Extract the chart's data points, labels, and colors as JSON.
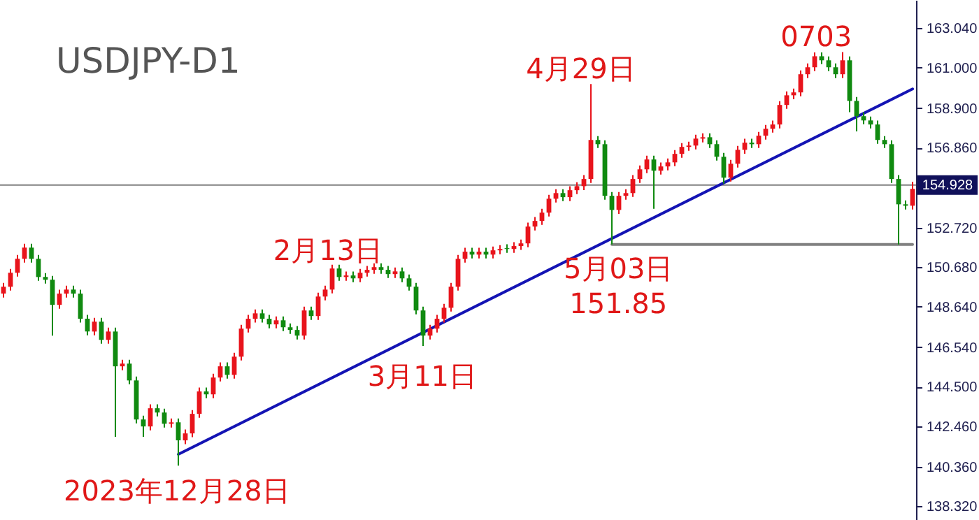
{
  "chart_data": {
    "type": "candlestick",
    "title": "USDJPY-D1",
    "categories": [
      null,
      null,
      null,
      null,
      null,
      null,
      null,
      null,
      null,
      null,
      null,
      null,
      null,
      null,
      null,
      null,
      null,
      null,
      null,
      null,
      null,
      null,
      null,
      null,
      null,
      null,
      null,
      null,
      null,
      null,
      null,
      null,
      null,
      null,
      null,
      null,
      null,
      null,
      null,
      null,
      null,
      null,
      null,
      null,
      null,
      null,
      null,
      null,
      null,
      null,
      null,
      null,
      null,
      null,
      null,
      null,
      null,
      null,
      null,
      null,
      null,
      null,
      null,
      null,
      null,
      null,
      null,
      null,
      null,
      null,
      null,
      null,
      null,
      null,
      null,
      null,
      null,
      null,
      null,
      null,
      null,
      null,
      null,
      null,
      null,
      null,
      null,
      null,
      null,
      null,
      null,
      null,
      null,
      null,
      null,
      null,
      null,
      null,
      null,
      null,
      null,
      null,
      null,
      null,
      null,
      null,
      null,
      null,
      null,
      null,
      null,
      null,
      null,
      null,
      null,
      null,
      null,
      null,
      null,
      null,
      null,
      null,
      null,
      null,
      null,
      null,
      null,
      null,
      null,
      null,
      null
    ],
    "ohlc": [
      [
        149.31,
        149.87,
        149.11,
        149.67
      ],
      [
        149.67,
        150.59,
        149.47,
        150.39
      ],
      [
        150.39,
        151.31,
        150.19,
        151.11
      ],
      [
        151.11,
        151.89,
        150.91,
        151.69
      ],
      [
        151.69,
        151.89,
        150.91,
        151.11
      ],
      [
        151.11,
        151.31,
        149.97,
        150.17
      ],
      [
        150.17,
        150.37,
        149.83,
        150.03
      ],
      [
        150.03,
        150.23,
        147.14,
        148.73
      ],
      [
        148.73,
        149.51,
        148.53,
        149.31
      ],
      [
        149.31,
        149.72,
        149.11,
        149.52
      ],
      [
        149.52,
        149.72,
        149.11,
        149.31
      ],
      [
        149.31,
        149.51,
        147.81,
        148.01
      ],
      [
        148.01,
        148.21,
        147.15,
        147.35
      ],
      [
        147.35,
        148.06,
        147.15,
        147.86
      ],
      [
        147.86,
        148.06,
        146.72,
        146.92
      ],
      [
        146.92,
        147.55,
        146.72,
        147.35
      ],
      [
        147.35,
        147.55,
        141.9,
        145.55
      ],
      [
        145.55,
        145.89,
        145.35,
        145.69
      ],
      [
        145.69,
        145.89,
        144.62,
        144.82
      ],
      [
        144.82,
        145.02,
        142.6,
        142.8
      ],
      [
        142.8,
        143.0,
        141.9,
        142.44
      ],
      [
        142.44,
        143.58,
        142.24,
        143.38
      ],
      [
        143.38,
        143.58,
        142.96,
        143.16
      ],
      [
        143.16,
        143.36,
        142.38,
        142.58
      ],
      [
        142.58,
        142.85,
        142.38,
        142.65
      ],
      [
        142.65,
        142.85,
        140.41,
        141.72
      ],
      [
        141.72,
        142.28,
        141.52,
        142.08
      ],
      [
        142.08,
        143.29,
        141.88,
        143.09
      ],
      [
        143.09,
        144.45,
        142.89,
        144.25
      ],
      [
        144.25,
        144.45,
        143.9,
        144.1
      ],
      [
        144.1,
        145.17,
        143.9,
        144.97
      ],
      [
        144.97,
        145.75,
        144.77,
        145.55
      ],
      [
        145.55,
        145.75,
        144.91,
        145.11
      ],
      [
        145.11,
        146.25,
        144.91,
        146.05
      ],
      [
        146.05,
        147.7,
        145.85,
        147.5
      ],
      [
        147.5,
        148.21,
        147.3,
        148.01
      ],
      [
        148.01,
        148.49,
        147.81,
        148.29
      ],
      [
        148.29,
        148.49,
        147.81,
        148.01
      ],
      [
        148.01,
        148.21,
        147.52,
        147.72
      ],
      [
        147.72,
        148.13,
        147.52,
        147.93
      ],
      [
        147.93,
        148.13,
        147.37,
        147.57
      ],
      [
        147.57,
        147.77,
        147.23,
        147.43
      ],
      [
        147.43,
        147.63,
        146.94,
        147.14
      ],
      [
        147.14,
        148.64,
        146.94,
        148.44
      ],
      [
        148.44,
        148.64,
        147.95,
        148.15
      ],
      [
        148.15,
        149.36,
        147.95,
        149.16
      ],
      [
        149.16,
        149.72,
        148.96,
        149.52
      ],
      [
        149.52,
        150.81,
        149.32,
        150.61
      ],
      [
        150.61,
        150.81,
        149.97,
        150.17
      ],
      [
        150.17,
        150.45,
        149.97,
        150.25
      ],
      [
        150.25,
        150.45,
        149.9,
        150.1
      ],
      [
        150.1,
        150.59,
        149.9,
        150.39
      ],
      [
        150.39,
        150.74,
        150.19,
        150.54
      ],
      [
        150.54,
        150.88,
        150.34,
        150.68
      ],
      [
        150.68,
        150.88,
        150.34,
        150.54
      ],
      [
        150.54,
        150.74,
        150.12,
        150.32
      ],
      [
        150.32,
        150.66,
        150.12,
        150.46
      ],
      [
        150.46,
        150.66,
        149.9,
        150.1
      ],
      [
        150.1,
        150.3,
        149.47,
        149.67
      ],
      [
        149.67,
        149.87,
        148.24,
        148.44
      ],
      [
        148.44,
        148.64,
        146.6,
        147.14
      ],
      [
        147.14,
        147.7,
        146.94,
        147.5
      ],
      [
        147.5,
        148.21,
        147.3,
        148.01
      ],
      [
        148.01,
        148.78,
        147.81,
        148.58
      ],
      [
        148.58,
        149.87,
        148.38,
        149.67
      ],
      [
        149.67,
        151.31,
        149.47,
        151.11
      ],
      [
        151.11,
        151.68,
        150.91,
        151.48
      ],
      [
        151.48,
        151.68,
        151.13,
        151.33
      ],
      [
        151.33,
        151.68,
        151.13,
        151.48
      ],
      [
        151.48,
        151.68,
        151.13,
        151.33
      ],
      [
        151.33,
        151.75,
        151.13,
        151.55
      ],
      [
        151.55,
        151.82,
        151.35,
        151.62
      ],
      [
        151.66,
        151.86,
        151.42,
        151.62
      ],
      [
        151.62,
        151.97,
        151.42,
        151.77
      ],
      [
        151.77,
        152.11,
        151.57,
        151.91
      ],
      [
        151.91,
        152.98,
        151.71,
        152.78
      ],
      [
        152.78,
        153.27,
        152.58,
        153.07
      ],
      [
        153.07,
        153.7,
        152.87,
        153.5
      ],
      [
        153.5,
        154.42,
        153.3,
        154.22
      ],
      [
        154.22,
        154.71,
        154.02,
        154.51
      ],
      [
        154.51,
        154.71,
        154.1,
        154.3
      ],
      [
        154.3,
        154.86,
        154.1,
        154.66
      ],
      [
        154.66,
        155.07,
        154.46,
        154.87
      ],
      [
        154.87,
        155.44,
        154.67,
        155.24
      ],
      [
        155.24,
        160.15,
        155.04,
        157.26
      ],
      [
        157.26,
        157.46,
        156.84,
        157.04
      ],
      [
        157.04,
        157.24,
        154.17,
        154.37
      ],
      [
        154.37,
        154.57,
        151.85,
        153.64
      ],
      [
        153.64,
        154.57,
        153.44,
        154.37
      ],
      [
        154.37,
        154.71,
        154.17,
        154.51
      ],
      [
        154.51,
        155.44,
        154.31,
        155.24
      ],
      [
        155.24,
        155.94,
        155.04,
        155.74
      ],
      [
        155.74,
        156.45,
        155.54,
        156.25
      ],
      [
        156.25,
        156.45,
        153.7,
        155.67
      ],
      [
        155.67,
        156.09,
        155.47,
        155.89
      ],
      [
        155.89,
        156.3,
        155.69,
        156.1
      ],
      [
        156.1,
        156.74,
        155.9,
        156.54
      ],
      [
        156.54,
        157.1,
        156.34,
        156.9
      ],
      [
        156.9,
        157.17,
        156.7,
        156.97
      ],
      [
        156.97,
        157.53,
        156.77,
        157.33
      ],
      [
        157.33,
        157.6,
        157.13,
        157.4
      ],
      [
        157.4,
        157.6,
        156.84,
        157.04
      ],
      [
        157.04,
        157.24,
        156.19,
        156.39
      ],
      [
        156.39,
        156.59,
        155.0,
        155.31
      ],
      [
        155.31,
        156.23,
        155.11,
        156.03
      ],
      [
        156.03,
        156.95,
        155.83,
        156.75
      ],
      [
        156.75,
        157.32,
        156.55,
        157.12
      ],
      [
        157.12,
        157.32,
        156.84,
        157.04
      ],
      [
        157.04,
        157.68,
        156.84,
        157.48
      ],
      [
        157.48,
        158.04,
        157.28,
        157.84
      ],
      [
        157.84,
        158.26,
        157.64,
        158.06
      ],
      [
        158.06,
        159.27,
        157.86,
        159.07
      ],
      [
        159.07,
        159.77,
        158.87,
        159.57
      ],
      [
        159.57,
        159.92,
        159.37,
        159.72
      ],
      [
        159.72,
        160.86,
        159.52,
        160.66
      ],
      [
        160.66,
        161.22,
        160.46,
        161.02
      ],
      [
        161.02,
        161.79,
        160.82,
        161.59
      ],
      [
        161.59,
        161.79,
        161.18,
        161.38
      ],
      [
        161.38,
        161.58,
        160.82,
        161.02
      ],
      [
        161.02,
        161.22,
        160.46,
        160.66
      ],
      [
        160.66,
        161.81,
        160.46,
        161.38
      ],
      [
        161.38,
        161.58,
        158.7,
        159.28
      ],
      [
        159.28,
        159.48,
        157.7,
        158.49
      ],
      [
        158.49,
        158.69,
        158.07,
        158.27
      ],
      [
        158.27,
        158.47,
        157.86,
        158.06
      ],
      [
        158.06,
        158.26,
        157.06,
        157.26
      ],
      [
        157.26,
        157.46,
        156.84,
        157.04
      ],
      [
        157.04,
        157.24,
        155.04,
        155.24
      ],
      [
        155.24,
        155.44,
        151.85,
        153.93
      ],
      [
        153.93,
        154.13,
        153.66,
        153.86
      ],
      [
        153.86,
        155.1,
        153.66,
        154.73
      ]
    ],
    "colors": [
      "#e8141c",
      "#e8141c",
      "#e8141c",
      "#e8141c",
      "#108a10",
      "#108a10",
      "#108a10",
      "#108a10",
      "#e8141c",
      "#e8141c",
      "#108a10",
      "#108a10",
      "#108a10",
      "#e8141c",
      "#108a10",
      "#e8141c",
      "#108a10",
      "#e8141c",
      "#108a10",
      "#108a10",
      "#108a10",
      "#e8141c",
      "#108a10",
      "#108a10",
      "#e8141c",
      "#108a10",
      "#e8141c",
      "#e8141c",
      "#e8141c",
      "#108a10",
      "#e8141c",
      "#e8141c",
      "#108a10",
      "#e8141c",
      "#e8141c",
      "#e8141c",
      "#e8141c",
      "#108a10",
      "#108a10",
      "#e8141c",
      "#108a10",
      "#108a10",
      "#108a10",
      "#e8141c",
      "#108a10",
      "#e8141c",
      "#e8141c",
      "#e8141c",
      "#108a10",
      "#e8141c",
      "#108a10",
      "#e8141c",
      "#e8141c",
      "#e8141c",
      "#108a10",
      "#108a10",
      "#e8141c",
      "#108a10",
      "#108a10",
      "#108a10",
      "#108a10",
      "#e8141c",
      "#e8141c",
      "#e8141c",
      "#e8141c",
      "#e8141c",
      "#e8141c",
      "#108a10",
      "#e8141c",
      "#108a10",
      "#e8141c",
      "#e8141c",
      "#108a10",
      "#e8141c",
      "#e8141c",
      "#e8141c",
      "#e8141c",
      "#e8141c",
      "#e8141c",
      "#e8141c",
      "#108a10",
      "#e8141c",
      "#e8141c",
      "#e8141c",
      "#e8141c",
      "#108a10",
      "#108a10",
      "#108a10",
      "#e8141c",
      "#e8141c",
      "#e8141c",
      "#e8141c",
      "#e8141c",
      "#108a10",
      "#e8141c",
      "#e8141c",
      "#e8141c",
      "#e8141c",
      "#e8141c",
      "#e8141c",
      "#e8141c",
      "#108a10",
      "#108a10",
      "#108a10",
      "#e8141c",
      "#e8141c",
      "#e8141c",
      "#108a10",
      "#e8141c",
      "#e8141c",
      "#e8141c",
      "#e8141c",
      "#e8141c",
      "#e8141c",
      "#e8141c",
      "#e8141c",
      "#e8141c",
      "#108a10",
      "#108a10",
      "#108a10",
      "#e8141c",
      "#108a10",
      "#108a10",
      "#108a10",
      "#108a10",
      "#108a10",
      "#108a10",
      "#108a10",
      "#108a10",
      "#108a10",
      "#e8141c"
    ],
    "series": [
      {
        "type": "line",
        "color": "#1414b4",
        "values": [
          null,
          null,
          null,
          null,
          null,
          null,
          null,
          null,
          null,
          null,
          null,
          null,
          null,
          null,
          null,
          null,
          null,
          null,
          null,
          null,
          null,
          null,
          null,
          null,
          null,
          141.0,
          null,
          null,
          null,
          null,
          null,
          null,
          null,
          null,
          null,
          null,
          null,
          null,
          null,
          null,
          null,
          null,
          null,
          null,
          null,
          null,
          null,
          null,
          null,
          null,
          null,
          null,
          null,
          null,
          null,
          null,
          null,
          null,
          null,
          null,
          null,
          null,
          null,
          null,
          null,
          null,
          null,
          null,
          null,
          null,
          null,
          null,
          null,
          null,
          null,
          null,
          null,
          null,
          null,
          null,
          null,
          null,
          null,
          null,
          null,
          null,
          null,
          null,
          null,
          null,
          null,
          null,
          null,
          null,
          null,
          null,
          null,
          null,
          null,
          null,
          null,
          null,
          null,
          null,
          null,
          null,
          null,
          null,
          null,
          null,
          null,
          null,
          null,
          null,
          null,
          null,
          null,
          null,
          null,
          null,
          null,
          null,
          null,
          null,
          null,
          null,
          null,
          null,
          null,
          null,
          159.9
        ]
      },
      {
        "type": "line",
        "color": "#808080",
        "values": [
          null,
          null,
          null,
          null,
          null,
          null,
          null,
          null,
          null,
          null,
          null,
          null,
          null,
          null,
          null,
          null,
          null,
          null,
          null,
          null,
          null,
          null,
          null,
          null,
          null,
          null,
          null,
          null,
          null,
          null,
          null,
          null,
          null,
          null,
          null,
          null,
          null,
          null,
          null,
          null,
          null,
          null,
          null,
          null,
          null,
          null,
          null,
          null,
          null,
          null,
          null,
          null,
          null,
          null,
          null,
          null,
          null,
          null,
          null,
          null,
          null,
          null,
          null,
          null,
          null,
          null,
          null,
          null,
          null,
          null,
          null,
          null,
          null,
          null,
          null,
          null,
          null,
          null,
          null,
          null,
          null,
          null,
          null,
          null,
          null,
          null,
          null,
          151.85,
          null,
          null,
          null,
          null,
          null,
          null,
          null,
          null,
          null,
          null,
          null,
          null,
          null,
          null,
          null,
          null,
          null,
          null,
          null,
          null,
          null,
          null,
          null,
          null,
          null,
          null,
          null,
          null,
          null,
          null,
          null,
          null,
          null,
          null,
          null,
          null,
          null,
          null,
          null,
          null,
          null,
          null,
          151.85
        ]
      }
    ],
    "ref_lines": [
      {
        "axis": "y",
        "value": 154.928,
        "label": "154.928",
        "color": "#808080"
      }
    ],
    "ylim": [
      137.6,
      164.5
    ],
    "yticks": [
      {
        "value": 163.04,
        "label": "163.040"
      },
      {
        "value": 161.0,
        "label": "161.000"
      },
      {
        "value": 158.9,
        "label": "158.900"
      },
      {
        "value": 156.86,
        "label": "156.860"
      },
      {
        "value": 152.72,
        "label": "152.720"
      },
      {
        "value": 150.68,
        "label": "150.680"
      },
      {
        "value": 148.64,
        "label": "148.640"
      },
      {
        "value": 146.54,
        "label": "146.540"
      },
      {
        "value": 144.5,
        "label": "144.500"
      },
      {
        "value": 142.46,
        "label": "142.460"
      },
      {
        "value": 140.36,
        "label": "140.360"
      },
      {
        "value": 138.32,
        "label": "138.320"
      }
    ],
    "tick_labels": "y",
    "annotations": [
      "2023年12月28日",
      "2月13日",
      "3月11日",
      "4月29日",
      "5月03日",
      "151.85",
      "0703"
    ]
  }
}
